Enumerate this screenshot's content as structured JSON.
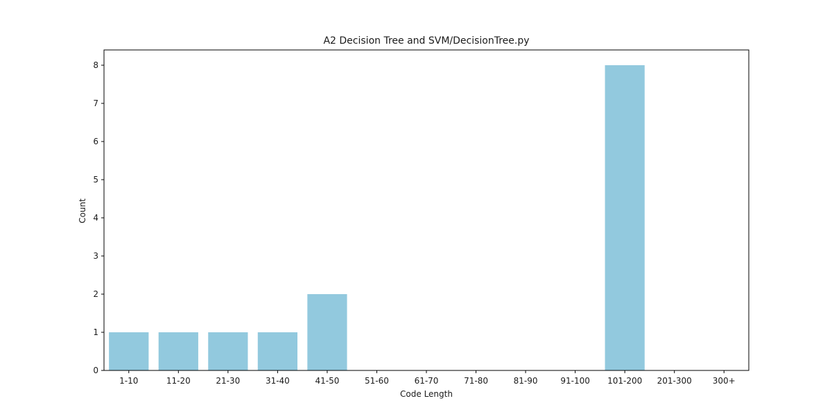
{
  "chart_data": {
    "type": "bar",
    "title": "A2 Decision Tree and SVM/DecisionTree.py",
    "xlabel": "Code Length",
    "ylabel": "Count",
    "categories": [
      "1-10",
      "11-20",
      "21-30",
      "31-40",
      "41-50",
      "51-60",
      "61-70",
      "71-80",
      "81-90",
      "91-100",
      "101-200",
      "201-300",
      "300+"
    ],
    "values": [
      1,
      1,
      1,
      1,
      2,
      0,
      0,
      0,
      0,
      0,
      8,
      0,
      0
    ],
    "ylim": [
      0,
      8.4
    ],
    "yticks": [
      0,
      1,
      2,
      3,
      4,
      5,
      6,
      7,
      8
    ],
    "bar_color": "#92c9de",
    "grid": false,
    "legend": "none"
  }
}
